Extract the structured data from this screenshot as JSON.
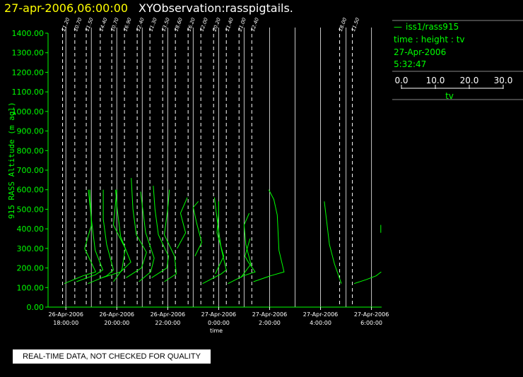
{
  "header": {
    "date_time": "27-apr-2006,06:00:00",
    "observation": "XYObservation:rasspigtails."
  },
  "legend": {
    "dash": "—",
    "series_name": "iss1/rass915",
    "mapping": "time : height : tv",
    "date": "27-Apr-2006",
    "time": "5:32:47",
    "scale_ticks": [
      "0.0",
      "10.0",
      "20.0",
      "30.0"
    ],
    "scale_label": "tv"
  },
  "footer": {
    "quality_notice": "REAL-TIME DATA, NOT CHECKED FOR QUALITY"
  },
  "chart_data": {
    "type": "line",
    "title": "27-apr-2006,06:00:00  XYObservation:rasspigtails.",
    "xlabel": "time",
    "ylabel": "915 RASS Altitude (m agl)",
    "ylim": [
      0,
      1400
    ],
    "xlim_hours": [
      17.3,
      30.4
    ],
    "y_ticks": [
      "0.00",
      "100.00",
      "200.00",
      "300.00",
      "400.00",
      "500.00",
      "600.00",
      "700.00",
      "800.00",
      "900.00",
      "1000.00",
      "1100.00",
      "1200.00",
      "1300.00",
      "1400.00"
    ],
    "x_ticks": [
      {
        "hour": 18,
        "date": "26-Apr-2006",
        "time": "18:00:00"
      },
      {
        "hour": 20,
        "date": "26-Apr-2006",
        "time": "20:00:00"
      },
      {
        "hour": 22,
        "date": "26-Apr-2006",
        "time": "22:00:00"
      },
      {
        "hour": 24,
        "date": "27-Apr-2006",
        "time": "0:00:00"
      },
      {
        "hour": 26,
        "date": "27-Apr-2006",
        "time": "2:00:00"
      },
      {
        "hour": 28,
        "date": "27-Apr-2006",
        "time": "4:00:00"
      },
      {
        "hour": 30,
        "date": "27-Apr-2006",
        "time": "6:00:00"
      }
    ],
    "solid_gridlines_hours": [
      19,
      21,
      23,
      25,
      27,
      29
    ],
    "legend_position": "top-right",
    "tv_units_per_hour": 15,
    "profiles": [
      {
        "hour": 17.87,
        "label": "11.20",
        "tv": [
          [
            1,
            120
          ],
          [
            12,
            160
          ],
          [
            19.5,
            180
          ],
          [
            13,
            300
          ],
          [
            17,
            420
          ],
          [
            16,
            600
          ]
        ]
      },
      {
        "hour": 18.35,
        "label": "10.70",
        "tv": [
          [
            1,
            130
          ],
          [
            12,
            165
          ],
          [
            16.5,
            190
          ],
          [
            12,
            290
          ],
          [
            10,
            430
          ],
          [
            8,
            600
          ]
        ]
      },
      {
        "hour": 18.8,
        "label": "11.50",
        "tv": [
          [
            1,
            120
          ],
          [
            12,
            160
          ],
          [
            16,
            190
          ],
          [
            12,
            320
          ],
          [
            10,
            450
          ],
          [
            10,
            600
          ]
        ]
      },
      {
        "hour": 19.35,
        "label": "14.40",
        "tv": [
          [
            1,
            150
          ],
          [
            12,
            180
          ],
          [
            18,
            230
          ],
          [
            12,
            360
          ],
          [
            10,
            500
          ],
          [
            9,
            600
          ]
        ]
      },
      {
        "hour": 19.8,
        "label": "10.70",
        "tv": [
          [
            1,
            130
          ],
          [
            6,
            190
          ],
          [
            8,
            300
          ],
          [
            1,
            420
          ],
          [
            3,
            600
          ]
        ]
      },
      {
        "hour": 20.3,
        "label": "16.90",
        "tv": [
          [
            1,
            150
          ],
          [
            10,
            200
          ],
          [
            13,
            280
          ],
          [
            7,
            370
          ],
          [
            5,
            500
          ],
          [
            4,
            660
          ]
        ]
      },
      {
        "hour": 20.8,
        "label": "12.40",
        "tv": [
          [
            1,
            130
          ],
          [
            8,
            180
          ],
          [
            10,
            250
          ],
          [
            5,
            380
          ],
          [
            3,
            520
          ],
          [
            2,
            590
          ]
        ]
      },
      {
        "hour": 21.3,
        "label": "11.30",
        "tv": [
          [
            1,
            150
          ],
          [
            10,
            200
          ],
          [
            11,
            260
          ],
          [
            5,
            370
          ],
          [
            3,
            500
          ],
          [
            2,
            620
          ]
        ]
      },
      {
        "hour": 21.8,
        "label": "13.50",
        "tv": [
          [
            1,
            130
          ],
          [
            8,
            170
          ],
          [
            7,
            260
          ],
          [
            1,
            370
          ],
          [
            3,
            500
          ],
          [
            4,
            600
          ]
        ]
      },
      {
        "hour": 22.3,
        "label": "18.60",
        "tv": [
          [
            1,
            300
          ],
          [
            6,
            380
          ],
          [
            3,
            480
          ],
          [
            7,
            560
          ]
        ]
      },
      {
        "hour": 22.8,
        "label": "16.20",
        "tv": [
          [
            4,
            260
          ],
          [
            8,
            330
          ],
          [
            5,
            430
          ],
          [
            3,
            510
          ],
          [
            6,
            540
          ]
        ]
      },
      {
        "hour": 23.3,
        "label": "12.00",
        "tv": [
          [
            1,
            120
          ],
          [
            12,
            170
          ],
          [
            15,
            190
          ],
          [
            12,
            300
          ],
          [
            10,
            420
          ],
          [
            8,
            560
          ]
        ]
      },
      {
        "hour": 23.8,
        "label": "20.20",
        "tv": [
          [
            1,
            170
          ],
          [
            6,
            260
          ],
          [
            2,
            380
          ],
          [
            3,
            480
          ],
          [
            3,
            540
          ]
        ]
      },
      {
        "hour": 24.3,
        "label": "11.40",
        "tv": [
          [
            1,
            120
          ],
          [
            10,
            160
          ],
          [
            17,
            180
          ],
          [
            13,
            230
          ],
          [
            11,
            260
          ],
          [
            14,
            350
          ]
        ]
      },
      {
        "hour": 24.8,
        "label": "21.00",
        "tv": [
          [
            1,
            150
          ],
          [
            7,
            220
          ],
          [
            4,
            320
          ],
          [
            3,
            420
          ],
          [
            6,
            480
          ]
        ]
      },
      {
        "hour": 25.3,
        "label": "12.40",
        "tv": [
          [
            1,
            130
          ],
          [
            11,
            160
          ],
          [
            19,
            180
          ],
          [
            16,
            290
          ],
          [
            15,
            470
          ],
          [
            13,
            550
          ],
          [
            10,
            600
          ]
        ]
      },
      {
        "hour": 28.75,
        "label": "18.00",
        "tv": [
          [
            1,
            120
          ],
          [
            -3,
            220
          ],
          [
            -6,
            320
          ],
          [
            -9,
            540
          ]
        ]
      },
      {
        "hour": 29.25,
        "label": "11.50",
        "tv": [
          [
            1,
            120
          ],
          [
            8,
            140
          ],
          [
            14,
            160
          ],
          [
            17,
            180
          ]
        ]
      },
      {
        "hour": 29.7,
        "label": "",
        "tv": [
          [
            10,
            380
          ],
          [
            10,
            420
          ]
        ]
      }
    ]
  }
}
